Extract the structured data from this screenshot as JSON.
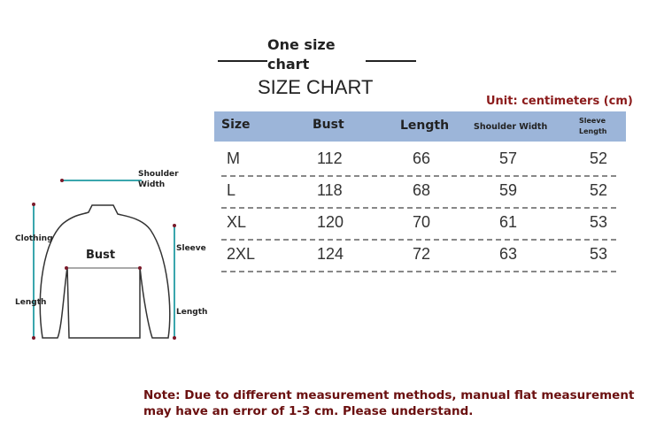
{
  "title": {
    "line1": "One size",
    "line2": "chart",
    "main": "SIZE CHART"
  },
  "unit": "Unit: centimeters (cm)",
  "table": {
    "headers": [
      "Size",
      "Bust",
      "Length",
      "Shoulder Width",
      "Sleeve",
      "Length"
    ],
    "rows": [
      [
        "M",
        "112",
        "66",
        "57",
        "52"
      ],
      [
        "L",
        "118",
        "68",
        "59",
        "52"
      ],
      [
        "XL",
        "120",
        "70",
        "61",
        "53"
      ],
      [
        "2XL",
        "124",
        "72",
        "63",
        "53"
      ]
    ]
  },
  "diagram": {
    "shoulder1": "Shoulder",
    "shoulder2": "Width",
    "clothing": "Clothing",
    "length_left": "Length",
    "bust": "Bust",
    "sleeve": "Sleeve",
    "length_right": "Length"
  },
  "note": "Note: Due to different measurement methods, manual flat measurement may have an error of 1-3 cm. Please understand.",
  "colors": {
    "header_bg": "#9cb5d9",
    "accent_red": "#8b1a1a",
    "measure_line": "#3aa6ad"
  }
}
